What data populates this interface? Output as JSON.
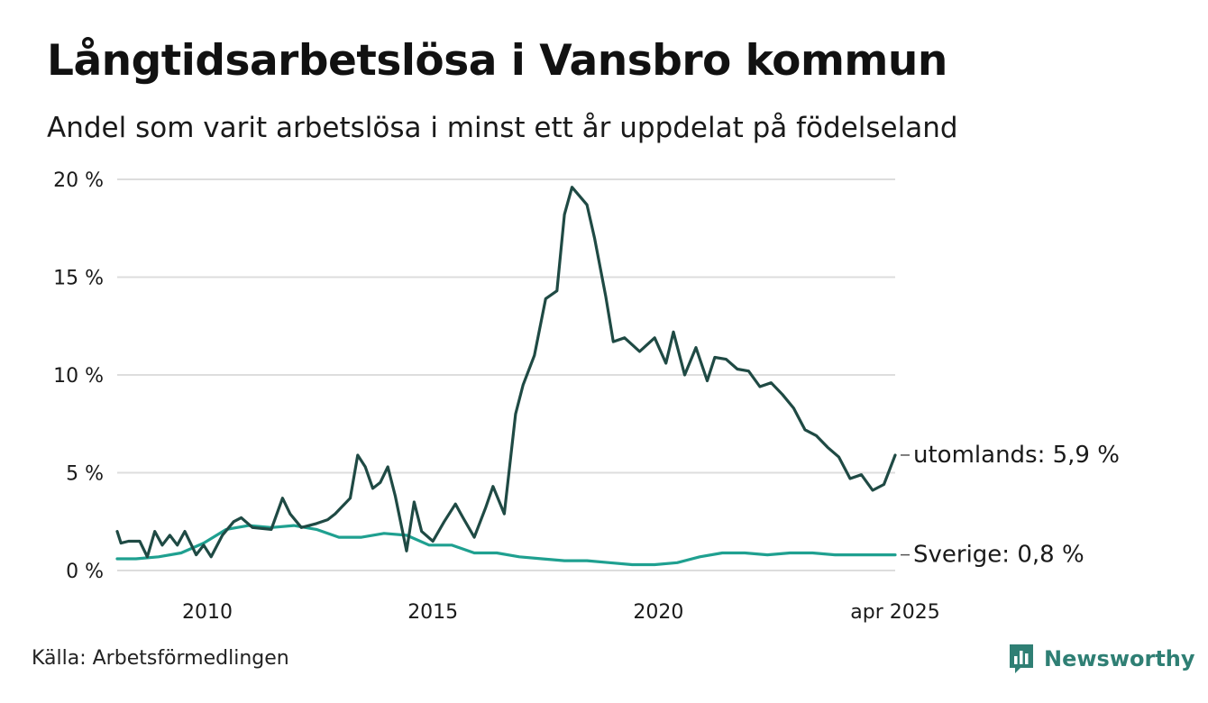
{
  "header": {
    "title": "Långtidsarbetslösa i Vansbro kommun",
    "subtitle": "Andel som varit arbetslösa i minst ett år uppdelat på födelseland"
  },
  "footer": {
    "source": "Källa: Arbetsförmedlingen",
    "brand": "Newsworthy",
    "brand_icon": "bar-chart-logo-icon"
  },
  "colors": {
    "utomlands": "#1f4a44",
    "sverige": "#1fa090",
    "grid": "#dddddd",
    "brand": "#2f7f74"
  },
  "chart_data": {
    "type": "line",
    "title": "Långtidsarbetslösa i Vansbro kommun",
    "subtitle": "Andel som varit arbetslösa i minst ett år uppdelat på födelseland",
    "y_unit": "%",
    "ylim": [
      0,
      20
    ],
    "y_ticks": [
      0,
      5,
      10,
      15,
      20
    ],
    "y_tick_labels": [
      "0 %",
      "5 %",
      "10 %",
      "15 %",
      "20 %"
    ],
    "x_range": [
      "2008-01",
      "2025-04"
    ],
    "x_ticks": [
      "2010-01",
      "2015-01",
      "2020-01",
      "2025-04"
    ],
    "x_tick_labels": [
      "2010",
      "2015",
      "2020",
      "apr 2025"
    ],
    "grid": true,
    "series": [
      {
        "key": "utomlands",
        "end_label": "utomlands: 5,9 %",
        "data": [
          [
            "2008-01",
            2.0
          ],
          [
            "2008-02",
            1.4
          ],
          [
            "2008-04",
            1.5
          ],
          [
            "2008-07",
            1.5
          ],
          [
            "2008-09",
            0.7
          ],
          [
            "2008-11",
            2.0
          ],
          [
            "2009-01",
            1.3
          ],
          [
            "2009-03",
            1.8
          ],
          [
            "2009-05",
            1.3
          ],
          [
            "2009-07",
            2.0
          ],
          [
            "2009-10",
            0.8
          ],
          [
            "2009-12",
            1.3
          ],
          [
            "2010-02",
            0.7
          ],
          [
            "2010-05",
            1.8
          ],
          [
            "2010-08",
            2.5
          ],
          [
            "2010-10",
            2.7
          ],
          [
            "2011-01",
            2.2
          ],
          [
            "2011-06",
            2.1
          ],
          [
            "2011-09",
            3.7
          ],
          [
            "2011-11",
            2.9
          ],
          [
            "2012-02",
            2.2
          ],
          [
            "2012-06",
            2.4
          ],
          [
            "2012-09",
            2.6
          ],
          [
            "2012-11",
            2.9
          ],
          [
            "2013-03",
            3.7
          ],
          [
            "2013-05",
            5.9
          ],
          [
            "2013-07",
            5.3
          ],
          [
            "2013-09",
            4.2
          ],
          [
            "2013-11",
            4.5
          ],
          [
            "2014-01",
            5.3
          ],
          [
            "2014-03",
            3.8
          ],
          [
            "2014-06",
            1.0
          ],
          [
            "2014-08",
            3.5
          ],
          [
            "2014-10",
            2.0
          ],
          [
            "2015-01",
            1.5
          ],
          [
            "2015-04",
            2.5
          ],
          [
            "2015-07",
            3.4
          ],
          [
            "2015-09",
            2.7
          ],
          [
            "2015-12",
            1.7
          ],
          [
            "2016-03",
            3.2
          ],
          [
            "2016-05",
            4.3
          ],
          [
            "2016-08",
            2.9
          ],
          [
            "2016-11",
            8.0
          ],
          [
            "2017-01",
            9.5
          ],
          [
            "2017-04",
            11.0
          ],
          [
            "2017-07",
            13.9
          ],
          [
            "2017-10",
            14.3
          ],
          [
            "2017-12",
            18.2
          ],
          [
            "2018-02",
            19.6
          ],
          [
            "2018-06",
            18.7
          ],
          [
            "2018-08",
            17.0
          ],
          [
            "2018-11",
            14.0
          ],
          [
            "2019-01",
            11.7
          ],
          [
            "2019-04",
            11.9
          ],
          [
            "2019-08",
            11.2
          ],
          [
            "2019-12",
            11.9
          ],
          [
            "2020-03",
            10.6
          ],
          [
            "2020-05",
            12.2
          ],
          [
            "2020-08",
            10.0
          ],
          [
            "2020-11",
            11.4
          ],
          [
            "2021-02",
            9.7
          ],
          [
            "2021-04",
            10.9
          ],
          [
            "2021-07",
            10.8
          ],
          [
            "2021-10",
            10.3
          ],
          [
            "2022-01",
            10.2
          ],
          [
            "2022-04",
            9.4
          ],
          [
            "2022-07",
            9.6
          ],
          [
            "2022-10",
            9.0
          ],
          [
            "2023-01",
            8.3
          ],
          [
            "2023-04",
            7.2
          ],
          [
            "2023-07",
            6.9
          ],
          [
            "2023-10",
            6.3
          ],
          [
            "2024-01",
            5.8
          ],
          [
            "2024-04",
            4.7
          ],
          [
            "2024-07",
            4.9
          ],
          [
            "2024-10",
            4.1
          ],
          [
            "2025-01",
            4.4
          ],
          [
            "2025-04",
            5.9
          ]
        ]
      },
      {
        "key": "sverige",
        "end_label": "Sverige: 0,8 %",
        "data": [
          [
            "2008-01",
            0.6
          ],
          [
            "2008-06",
            0.6
          ],
          [
            "2008-12",
            0.7
          ],
          [
            "2009-06",
            0.9
          ],
          [
            "2009-12",
            1.4
          ],
          [
            "2010-06",
            2.1
          ],
          [
            "2010-12",
            2.3
          ],
          [
            "2011-06",
            2.2
          ],
          [
            "2011-12",
            2.3
          ],
          [
            "2012-06",
            2.1
          ],
          [
            "2012-12",
            1.7
          ],
          [
            "2013-06",
            1.7
          ],
          [
            "2013-12",
            1.9
          ],
          [
            "2014-06",
            1.8
          ],
          [
            "2014-12",
            1.3
          ],
          [
            "2015-06",
            1.3
          ],
          [
            "2015-12",
            0.9
          ],
          [
            "2016-06",
            0.9
          ],
          [
            "2016-12",
            0.7
          ],
          [
            "2017-06",
            0.6
          ],
          [
            "2017-12",
            0.5
          ],
          [
            "2018-06",
            0.5
          ],
          [
            "2018-12",
            0.4
          ],
          [
            "2019-06",
            0.3
          ],
          [
            "2019-12",
            0.3
          ],
          [
            "2020-06",
            0.4
          ],
          [
            "2020-12",
            0.7
          ],
          [
            "2021-06",
            0.9
          ],
          [
            "2021-12",
            0.9
          ],
          [
            "2022-06",
            0.8
          ],
          [
            "2022-12",
            0.9
          ],
          [
            "2023-06",
            0.9
          ],
          [
            "2023-12",
            0.8
          ],
          [
            "2024-06",
            0.8
          ],
          [
            "2024-12",
            0.8
          ],
          [
            "2025-04",
            0.8
          ]
        ]
      }
    ]
  }
}
